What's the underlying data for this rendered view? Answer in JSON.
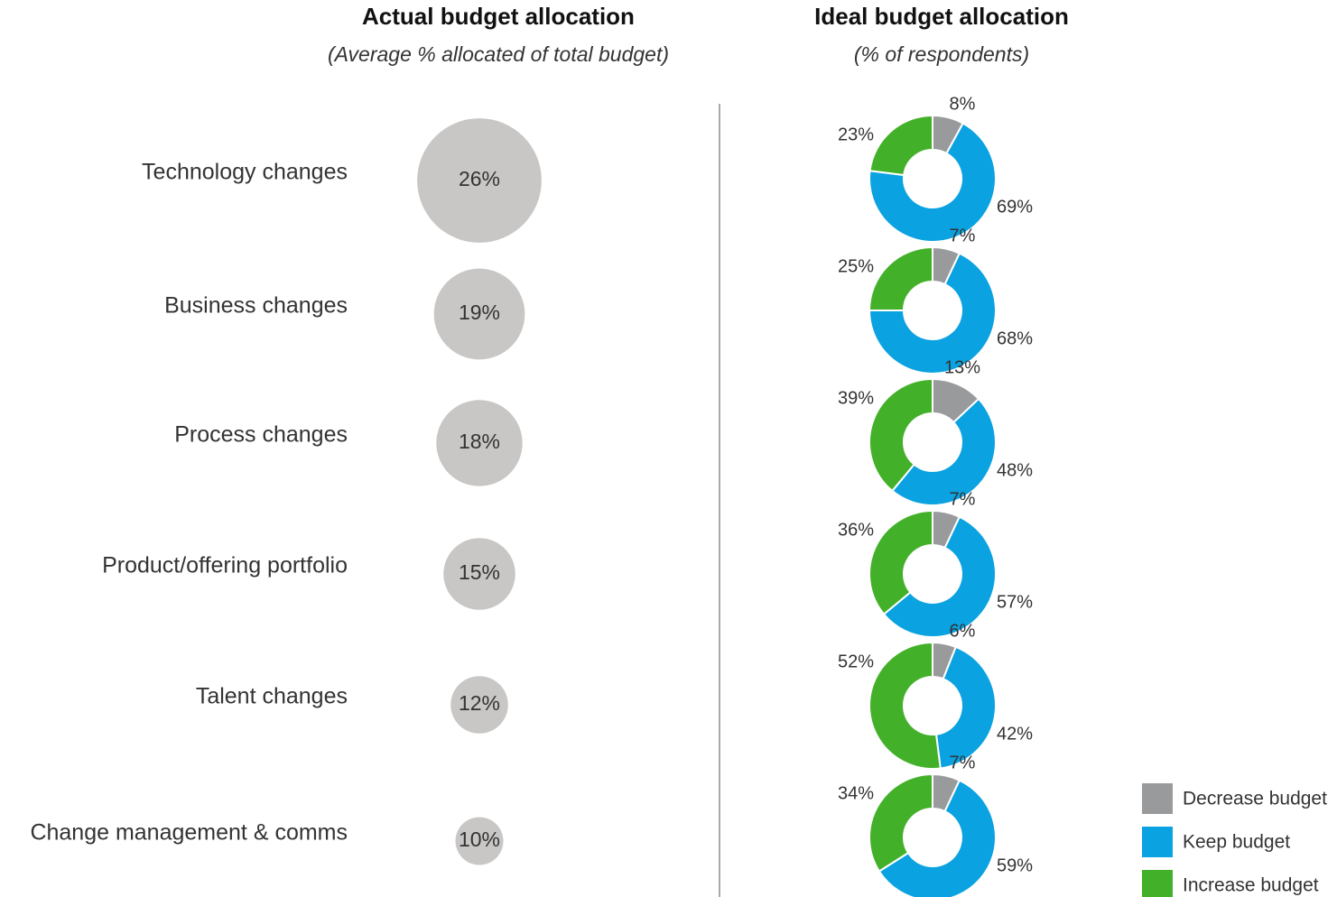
{
  "chart_data": [
    {
      "type": "bubble",
      "title": "Actual budget allocation",
      "subtitle": "(Average % allocated of total budget)",
      "categories": [
        "Technology changes",
        "Business changes",
        "Process changes",
        "Product/offering portfolio",
        "Talent changes",
        "Change management & comms"
      ],
      "values": [
        26,
        19,
        18,
        15,
        12,
        10
      ],
      "value_labels": [
        "26%",
        "19%",
        "18%",
        "15%",
        "12%",
        "10%"
      ],
      "color": "#c8c7c5"
    },
    {
      "type": "donut",
      "title": "Ideal budget allocation",
      "subtitle": "(% of respondents)",
      "legend": "bottom-right",
      "series": [
        {
          "name": "Decrease budget",
          "color": "#999a9c",
          "values": [
            8,
            7,
            13,
            7,
            6,
            7
          ],
          "value_labels": [
            "8%",
            "7%",
            "13%",
            "7%",
            "6%",
            "7%"
          ]
        },
        {
          "name": "Keep budget",
          "color": "#0aa2e0",
          "values": [
            69,
            68,
            48,
            57,
            42,
            59
          ],
          "value_labels": [
            "69%",
            "68%",
            "48%",
            "57%",
            "42%",
            "59%"
          ]
        },
        {
          "name": "Increase budget",
          "color": "#43b02a",
          "values": [
            23,
            25,
            39,
            36,
            52,
            34
          ],
          "value_labels": [
            "23%",
            "25%",
            "39%",
            "36%",
            "52%",
            "34%"
          ]
        }
      ]
    }
  ]
}
